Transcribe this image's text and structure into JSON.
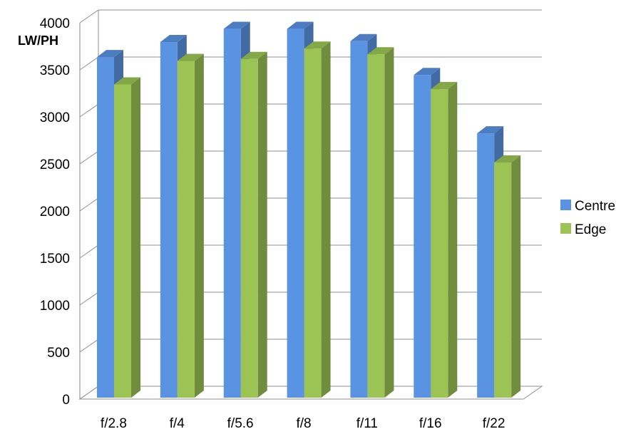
{
  "chart_data": {
    "type": "bar",
    "title": "",
    "xlabel": "",
    "ylabel": "LW/PH",
    "categories": [
      "f/2.8",
      "f/4",
      "f/5.6",
      "f/8",
      "f/11",
      "f/16",
      "f/22"
    ],
    "series": [
      {
        "name": "Centre",
        "values": [
          3620,
          3780,
          3920,
          3920,
          3790,
          3430,
          2810
        ],
        "color": "#5b93e3"
      },
      {
        "name": "Edge",
        "values": [
          3330,
          3580,
          3600,
          3710,
          3650,
          3280,
          2500
        ],
        "color": "#9bc455"
      }
    ],
    "ylim": [
      0,
      4000
    ],
    "yticks": [
      0,
      500,
      1000,
      1500,
      2000,
      2500,
      3000,
      3500,
      4000
    ],
    "grid": true,
    "legend_position": "right",
    "style": "3d-clustered-column"
  }
}
